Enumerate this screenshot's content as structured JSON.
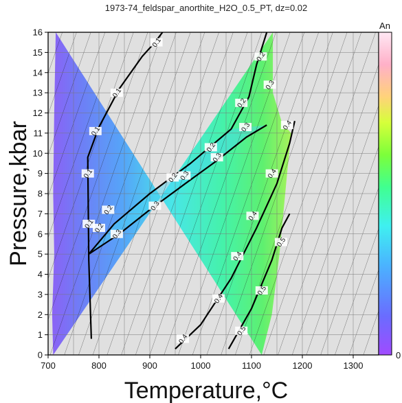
{
  "chart_data": {
    "type": "heatmap",
    "title": "1973-74_feldspar_anorthite_H2O_0.5_PT, dz=0.02",
    "xlabel": "Temperature,°C",
    "ylabel": "Pressure,kbar",
    "xlim": [
      700,
      1350
    ],
    "ylim": [
      0,
      16
    ],
    "xticks": [
      700,
      800,
      900,
      1000,
      1100,
      1200,
      1300
    ],
    "yticks": [
      0,
      1,
      2,
      3,
      4,
      5,
      6,
      7,
      8,
      9,
      10,
      11,
      12,
      13,
      14,
      15,
      16
    ],
    "grid": true,
    "colorbar": {
      "label": "An",
      "min_label": "0",
      "range": [
        0,
        1
      ]
    },
    "contour_interval": 0.02,
    "regions": {
      "solid_boundary": [
        [
          715,
          16
        ],
        [
          712,
          12
        ],
        [
          710,
          8
        ],
        [
          712,
          5
        ],
        [
          708,
          2
        ],
        [
          710,
          0
        ]
      ],
      "liquidus_boundary": [
        [
          1142,
          16
        ],
        [
          1142,
          13
        ],
        [
          1160,
          11.5
        ],
        [
          1178,
          11
        ],
        [
          1170,
          9
        ],
        [
          1155,
          5
        ],
        [
          1140,
          2
        ],
        [
          1120,
          0
        ]
      ]
    },
    "labeled_contours": [
      {
        "level": 0.1,
        "points": [
          [
            785,
            0.8
          ],
          [
            780,
            4.7
          ],
          [
            778,
            9.8
          ],
          [
            800,
            11.3
          ],
          [
            840,
            13.2
          ],
          [
            885,
            14.8
          ],
          [
            910,
            15.5
          ],
          [
            925,
            16
          ]
        ],
        "labels": [
          [
            778,
            9
          ],
          [
            793,
            11.1
          ],
          [
            835,
            13
          ],
          [
            913,
            15.5
          ],
          [
            780,
            6.5
          ]
        ]
      },
      {
        "level": 0.2,
        "points": [
          [
            780,
            5.0
          ],
          [
            830,
            6.5
          ],
          [
            900,
            8.0
          ],
          [
            980,
            9.5
          ],
          [
            1060,
            11.2
          ],
          [
            1095,
            12.8
          ],
          [
            1110,
            14.4
          ],
          [
            1130,
            16
          ]
        ],
        "labels": [
          [
            800,
            6.3
          ],
          [
            818,
            7.2
          ],
          [
            945,
            8.8
          ],
          [
            1020,
            10.3
          ],
          [
            1080,
            12.5
          ],
          [
            1118,
            14.8
          ]
        ]
      },
      {
        "level": 0.3,
        "points": [
          [
            780,
            5.0
          ],
          [
            840,
            6.0
          ],
          [
            900,
            7.2
          ],
          [
            970,
            8.5
          ],
          [
            1030,
            9.6
          ],
          [
            1090,
            10.8
          ],
          [
            1130,
            11.4
          ]
        ],
        "labels": [
          [
            835,
            6.0
          ],
          [
            910,
            7.4
          ],
          [
            968,
            8.9
          ],
          [
            1032,
            9.8
          ],
          [
            1088,
            11.3
          ],
          [
            1136,
            13.4
          ]
        ]
      },
      {
        "level": 0.4,
        "points": [
          [
            950,
            0.3
          ],
          [
            1000,
            1.5
          ],
          [
            1060,
            3.8
          ],
          [
            1110,
            6.3
          ],
          [
            1150,
            8.5
          ],
          [
            1175,
            10.5
          ],
          [
            1185,
            11.6
          ]
        ],
        "labels": [
          [
            965,
            0.8
          ],
          [
            1035,
            2.8
          ],
          [
            1072,
            4.9
          ],
          [
            1102,
            6.9
          ],
          [
            1140,
            9.0
          ],
          [
            1170,
            11.4
          ]
        ]
      },
      {
        "level": 0.5,
        "points": [
          [
            1055,
            0.3
          ],
          [
            1100,
            2.3
          ],
          [
            1140,
            4.7
          ],
          [
            1160,
            6.3
          ],
          [
            1175,
            7.0
          ]
        ],
        "labels": [
          [
            1080,
            1.2
          ],
          [
            1120,
            3.2
          ],
          [
            1158,
            5.6
          ]
        ]
      }
    ]
  }
}
